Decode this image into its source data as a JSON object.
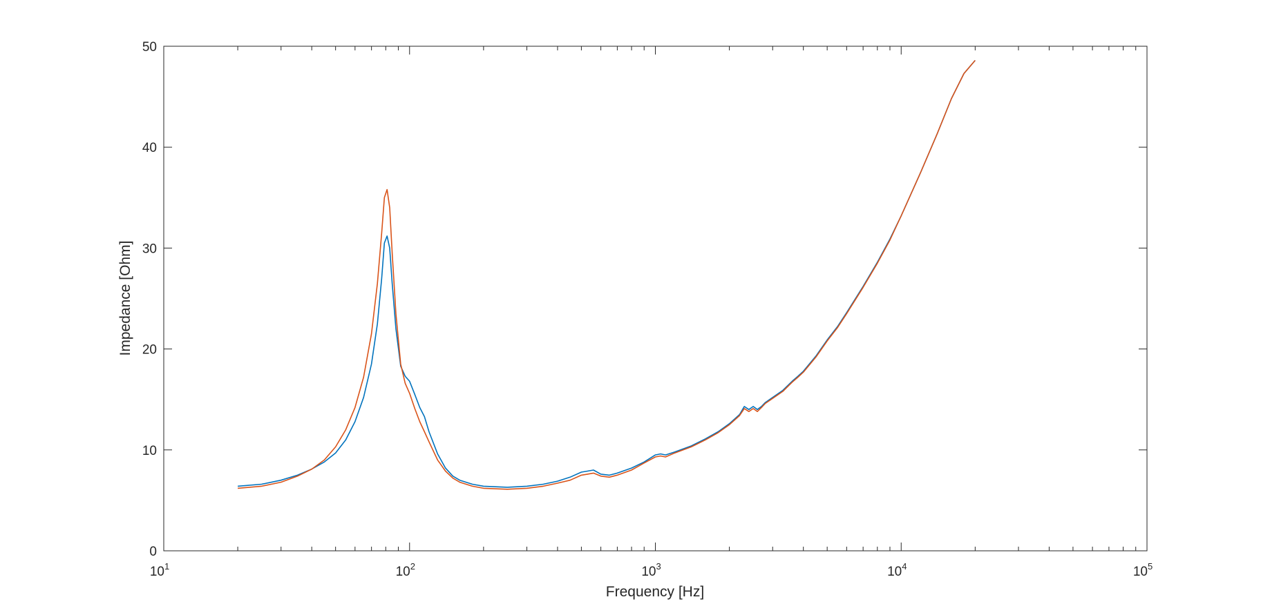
{
  "chart_data": {
    "type": "line",
    "xlabel": "Frequency [Hz]",
    "ylabel": "Impedance [Ohm]",
    "xscale": "log",
    "xlim": [
      10,
      100000
    ],
    "ylim": [
      0,
      50
    ],
    "grid": false,
    "box": true,
    "x_ticks": [
      {
        "base": "10",
        "exp": "1",
        "value": 10
      },
      {
        "base": "10",
        "exp": "2",
        "value": 100
      },
      {
        "base": "10",
        "exp": "3",
        "value": 1000
      },
      {
        "base": "10",
        "exp": "4",
        "value": 10000
      },
      {
        "base": "10",
        "exp": "5",
        "value": 100000
      }
    ],
    "y_ticks": [
      {
        "label": "0",
        "value": 0
      },
      {
        "label": "10",
        "value": 10
      },
      {
        "label": "20",
        "value": 20
      },
      {
        "label": "30",
        "value": 30
      },
      {
        "label": "40",
        "value": 40
      },
      {
        "label": "50",
        "value": 50
      }
    ],
    "series": [
      {
        "color": "#0072BD",
        "x": [
          20,
          25,
          30,
          35,
          40,
          45,
          50,
          55,
          60,
          65,
          70,
          74,
          77,
          79,
          81,
          83,
          85,
          88,
          92,
          96,
          100,
          105,
          110,
          115,
          120,
          130,
          140,
          150,
          160,
          180,
          200,
          250,
          300,
          350,
          400,
          450,
          500,
          530,
          560,
          600,
          650,
          700,
          800,
          900,
          1000,
          1050,
          1100,
          1200,
          1400,
          1600,
          1800,
          2000,
          2200,
          2300,
          2400,
          2500,
          2600,
          2700,
          2800,
          3000,
          3300,
          3600,
          3800,
          4000,
          4500,
          5000,
          5500,
          6000,
          7000,
          8000,
          9000,
          10000,
          12000,
          14000,
          16000,
          18000,
          20000
        ],
        "y": [
          6.4,
          6.6,
          7.0,
          7.5,
          8.1,
          8.8,
          9.7,
          11.0,
          12.8,
          15.2,
          18.5,
          22.5,
          27.0,
          30.5,
          31.2,
          30.0,
          26.5,
          22.0,
          18.3,
          17.3,
          16.8,
          15.5,
          14.2,
          13.3,
          11.8,
          9.6,
          8.2,
          7.4,
          7.0,
          6.6,
          6.4,
          6.3,
          6.4,
          6.6,
          6.9,
          7.3,
          7.8,
          7.9,
          8.0,
          7.6,
          7.5,
          7.7,
          8.2,
          8.8,
          9.5,
          9.6,
          9.5,
          9.8,
          10.4,
          11.1,
          11.8,
          12.6,
          13.5,
          14.3,
          14.0,
          14.3,
          14.0,
          14.3,
          14.7,
          15.2,
          15.9,
          16.8,
          17.3,
          17.8,
          19.3,
          20.9,
          22.2,
          23.6,
          26.2,
          28.6,
          30.9,
          33.2,
          37.5,
          41.3,
          44.8,
          47.3,
          48.6
        ]
      },
      {
        "color": "#D95319",
        "x": [
          20,
          25,
          30,
          35,
          40,
          45,
          50,
          55,
          60,
          65,
          70,
          74,
          77,
          79,
          81,
          83,
          85,
          88,
          92,
          96,
          100,
          105,
          110,
          115,
          120,
          130,
          140,
          150,
          160,
          180,
          200,
          250,
          300,
          350,
          400,
          450,
          500,
          530,
          560,
          600,
          650,
          700,
          800,
          900,
          1000,
          1050,
          1100,
          1200,
          1400,
          1600,
          1800,
          2000,
          2200,
          2300,
          2400,
          2500,
          2600,
          2700,
          2800,
          3000,
          3300,
          3600,
          3800,
          4000,
          4500,
          5000,
          5500,
          6000,
          7000,
          8000,
          9000,
          10000,
          12000,
          14000,
          16000,
          18000,
          20000
        ],
        "y": [
          6.2,
          6.4,
          6.8,
          7.4,
          8.1,
          9.0,
          10.3,
          12.0,
          14.2,
          17.2,
          21.5,
          26.5,
          31.5,
          35.0,
          35.8,
          34.0,
          29.5,
          23.5,
          18.5,
          16.6,
          15.6,
          14.1,
          12.8,
          11.8,
          10.8,
          9.0,
          7.9,
          7.2,
          6.8,
          6.4,
          6.2,
          6.1,
          6.2,
          6.4,
          6.7,
          7.0,
          7.5,
          7.6,
          7.7,
          7.4,
          7.3,
          7.5,
          8.0,
          8.7,
          9.3,
          9.4,
          9.3,
          9.7,
          10.3,
          11.0,
          11.7,
          12.5,
          13.4,
          14.1,
          13.8,
          14.1,
          13.8,
          14.2,
          14.6,
          15.1,
          15.8,
          16.7,
          17.2,
          17.7,
          19.2,
          20.8,
          22.1,
          23.5,
          26.1,
          28.5,
          30.8,
          33.2,
          37.5,
          41.3,
          44.8,
          47.3,
          48.6
        ]
      }
    ]
  }
}
